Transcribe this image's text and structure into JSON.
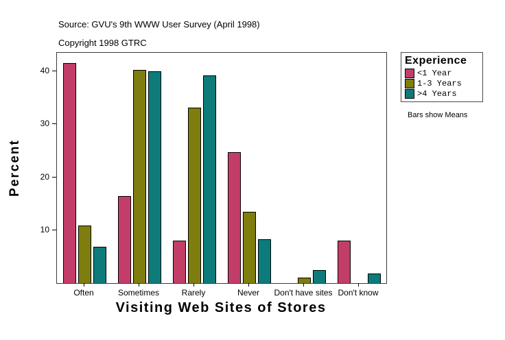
{
  "header": {
    "source": "Source: GVU's 9th WWW User Survey (April 1998)",
    "copyright": "Copyright 1998 GTRC"
  },
  "legend": {
    "title": "Experience",
    "note": "Bars show Means"
  },
  "chart_data": {
    "type": "bar",
    "title": "",
    "xlabel": "Visiting Web Sites of Stores",
    "ylabel": "Percent",
    "categories": [
      "Often",
      "Sometimes",
      "Rarely",
      "Never",
      "Don't have sites",
      "Don't know"
    ],
    "series": [
      {
        "name": "<1 Year",
        "color": "#C23E68",
        "values": [
          41.6,
          16.4,
          8.0,
          24.7,
          0,
          8.0
        ]
      },
      {
        "name": "1-3 Years",
        "color": "#7E7D0E",
        "values": [
          10.9,
          40.2,
          33.1,
          13.5,
          1.0,
          0
        ]
      },
      {
        "name": ">4 Years",
        "color": "#0E7B7B",
        "values": [
          6.9,
          40.0,
          39.2,
          8.3,
          2.5,
          1.8
        ]
      }
    ],
    "ylim": [
      0,
      43.5
    ],
    "yticks": [
      10,
      20,
      30,
      40
    ],
    "grid": false,
    "legend_position": "right"
  },
  "colors": {
    "bar_border": "#000000",
    "axis": "#3A3A3A",
    "background": "#FFFFFF"
  }
}
